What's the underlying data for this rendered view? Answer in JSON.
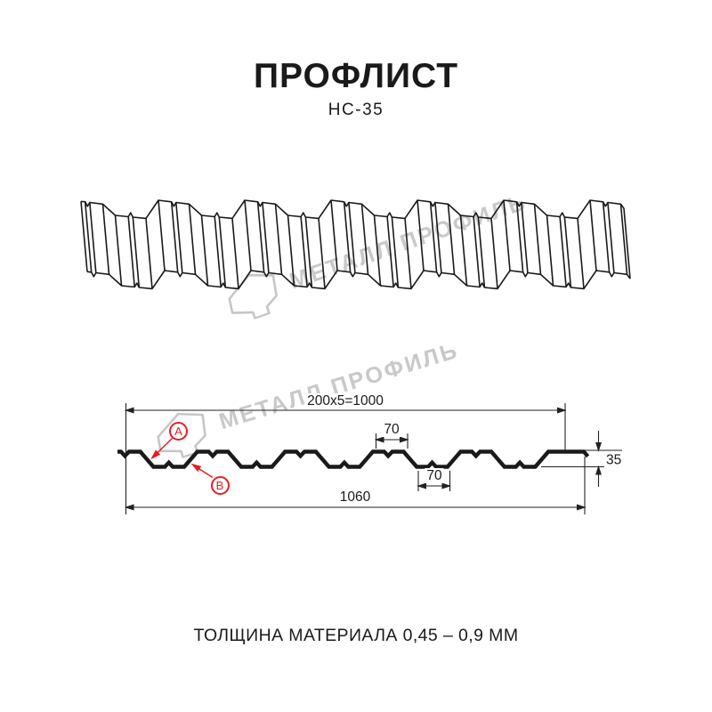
{
  "title": "ПРОФЛИСТ",
  "subtitle": "НС-35",
  "watermark": {
    "text": "МЕТАЛЛ ПРОФИЛЬ",
    "color": "#c9c9c9"
  },
  "diagram": {
    "annotations": {
      "a": "А",
      "b": "В"
    },
    "dimensions": {
      "top_span": "200x5=1000",
      "crest_width": "70",
      "trough_width": "70",
      "profile_height": "35",
      "overall_width": "1060"
    },
    "line_color": "#1a1a1a",
    "accent_color": "#e31e24"
  },
  "footer": {
    "thickness_note": "ТОЛЩИНА МАТЕРИАЛА 0,45 – 0,9 ММ"
  }
}
